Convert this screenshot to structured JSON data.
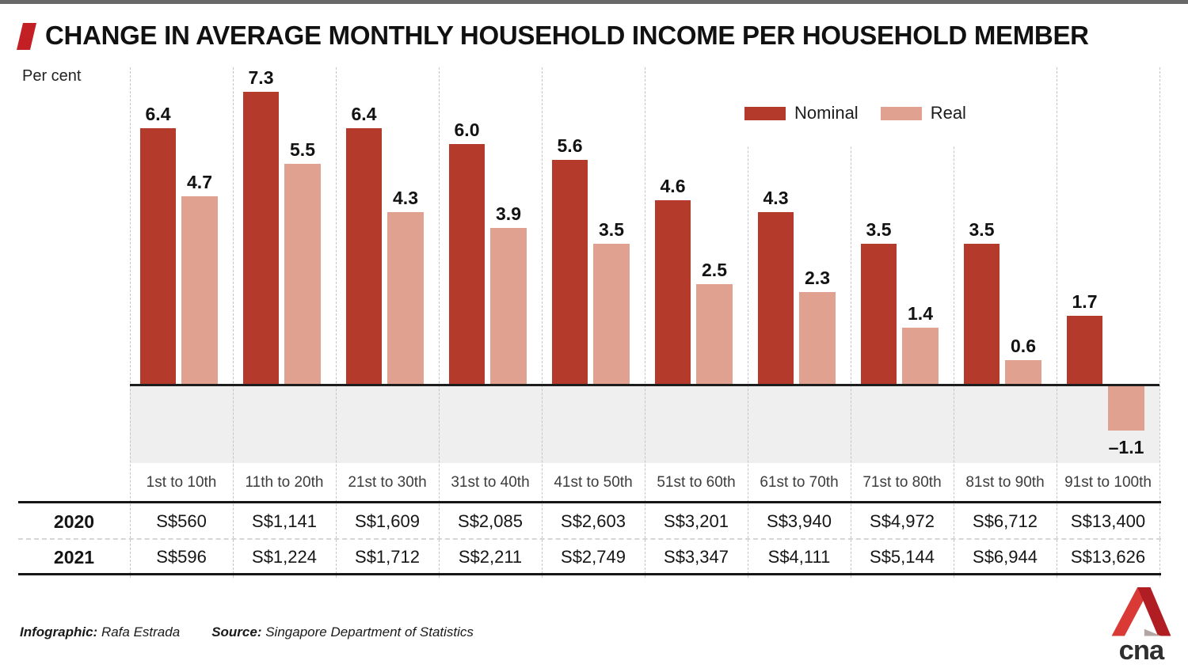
{
  "header": {
    "title": "CHANGE IN AVERAGE MONTHLY HOUSEHOLD INCOME PER HOUSEHOLD MEMBER"
  },
  "axis": {
    "unit_label": "Per cent"
  },
  "legend": {
    "nominal_label": "Nominal",
    "real_label": "Real"
  },
  "colors": {
    "nominal": "#b43a2b",
    "real": "#e0a190",
    "accent_slash": "#c32026",
    "neg_zone": "#efefef",
    "zero_line": "#1d1d1d"
  },
  "chart_data": {
    "type": "bar",
    "title": "CHANGE IN AVERAGE MONTHLY HOUSEHOLD INCOME PER HOUSEHOLD MEMBER",
    "ylabel": "Per cent",
    "ylim": [
      -2,
      8
    ],
    "grid": "vertical-dashed",
    "legend_position": "top-right-inside",
    "categories": [
      "1st to 10th",
      "11th to 20th",
      "21st to 30th",
      "31st to 40th",
      "41st to 50th",
      "51st to 60th",
      "61st to 70th",
      "71st to 80th",
      "81st to 90th",
      "91st to 100th"
    ],
    "series": [
      {
        "name": "Nominal",
        "color": "#b43a2b",
        "values": [
          6.4,
          7.3,
          6.4,
          6.0,
          5.6,
          4.6,
          4.3,
          3.5,
          3.5,
          1.7
        ]
      },
      {
        "name": "Real",
        "color": "#e0a190",
        "values": [
          4.7,
          5.5,
          4.3,
          3.9,
          3.5,
          2.5,
          2.3,
          1.4,
          0.6,
          -1.1
        ]
      }
    ]
  },
  "table": {
    "rows": [
      {
        "year": "2020",
        "values": [
          "S$560",
          "S$1,141",
          "S$1,609",
          "S$2,085",
          "S$2,603",
          "S$3,201",
          "S$3,940",
          "S$4,972",
          "S$6,712",
          "S$13,400"
        ]
      },
      {
        "year": "2021",
        "values": [
          "S$596",
          "S$1,224",
          "S$1,712",
          "S$2,211",
          "S$2,749",
          "S$3,347",
          "S$4,111",
          "S$5,144",
          "S$6,944",
          "S$13,626"
        ]
      }
    ]
  },
  "footer": {
    "infographic_label": "Infographic:",
    "infographic_value": "Rafa Estrada",
    "source_label": "Source:",
    "source_value": "Singapore Department of Statistics",
    "logo_text": "cna"
  }
}
